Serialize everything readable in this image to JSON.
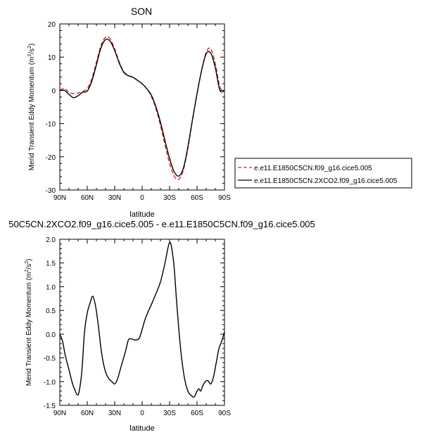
{
  "chart_data": [
    {
      "type": "line",
      "title": "SON",
      "xlabel": "latitude",
      "ylabel": "Merid Transient Eddy Momentum (m²/s²)",
      "ylabel_base": "Merid Transient Eddy Momentum (m",
      "ylabel_sup": "2",
      "ylabel_mid": "/s",
      "ylabel_end": ")",
      "xlim": [
        90,
        -90
      ],
      "ylim": [
        -30,
        20
      ],
      "x_ticks": [
        90,
        60,
        30,
        0,
        -30,
        -60,
        -90
      ],
      "x_tick_labels": [
        "90N",
        "60N",
        "30N",
        "0",
        "30S",
        "60S",
        "90S"
      ],
      "y_ticks": [
        -30,
        -20,
        -10,
        0,
        10,
        20
      ],
      "y_tick_labels": [
        "-30",
        "-20",
        "-10",
        "0",
        "10",
        "20"
      ],
      "legend": "right",
      "series": [
        {
          "name": "e.e11.E1850C5CN.f09_g16.cice5.005",
          "color": "#d62728",
          "dash": true,
          "x": [
            90,
            85,
            80,
            75,
            70,
            65,
            60,
            55,
            50,
            45,
            40,
            35,
            30,
            25,
            20,
            15,
            10,
            5,
            0,
            -5,
            -10,
            -15,
            -20,
            -25,
            -30,
            -35,
            -40,
            -45,
            -50,
            -55,
            -60,
            -65,
            -70,
            -75,
            -80,
            -85,
            -90
          ],
          "y": [
            0.0,
            0.6,
            -0.6,
            -1.0,
            -0.8,
            -0.3,
            0.5,
            3.5,
            8.5,
            13.5,
            16.0,
            15.5,
            12.5,
            8.5,
            5.6,
            4.5,
            4.0,
            3.0,
            2.0,
            0.5,
            -1.8,
            -5.5,
            -10.5,
            -16.5,
            -22.0,
            -25.8,
            -26.8,
            -24.0,
            -17.5,
            -9.0,
            -1.0,
            6.0,
            11.5,
            12.5,
            8.0,
            1.0,
            0.0
          ]
        },
        {
          "name": "e.e11.E1850C5CN.2XCO2.f09_g16.cice5.005",
          "color": "#000000",
          "dash": false,
          "x": [
            90,
            85,
            80,
            75,
            70,
            65,
            60,
            55,
            50,
            45,
            40,
            35,
            30,
            25,
            20,
            15,
            10,
            5,
            0,
            -5,
            -10,
            -15,
            -20,
            -25,
            -30,
            -35,
            -40,
            -45,
            -50,
            -55,
            -60,
            -65,
            -70,
            -75,
            -80,
            -85,
            -90
          ],
          "y": [
            0.0,
            0.0,
            -1.2,
            -2.2,
            -1.6,
            -0.6,
            -0.2,
            2.8,
            7.7,
            12.8,
            15.3,
            14.8,
            12.0,
            8.2,
            5.4,
            4.4,
            3.9,
            3.0,
            2.0,
            0.5,
            -1.4,
            -4.9,
            -9.6,
            -15.2,
            -20.5,
            -24.5,
            -25.8,
            -23.5,
            -17.0,
            -8.8,
            -1.0,
            6.0,
            11.0,
            11.2,
            6.8,
            0.0,
            0.0
          ]
        }
      ]
    },
    {
      "type": "line",
      "title": "50C5CN.2XCO2.f09_g16.cice5.005 - e.e11.E1850C5CN.f09_g16.cice5.005",
      "xlabel": "latitude",
      "ylabel": "Merid Transient Eddy Momentum (m²/s²)",
      "ylabel_base": "Merid Transient Eddy Momentum (m",
      "ylabel_sup": "2",
      "ylabel_mid": "/s",
      "ylabel_end": ")",
      "xlim": [
        90,
        -90
      ],
      "ylim": [
        -1.5,
        2.0
      ],
      "x_ticks": [
        90,
        60,
        30,
        0,
        -30,
        -60,
        -90
      ],
      "x_tick_labels": [
        "90N",
        "60N",
        "30N",
        "0",
        "30S",
        "60S",
        "90S"
      ],
      "y_ticks": [
        -1.5,
        -1.0,
        -0.5,
        0.0,
        0.5,
        1.0,
        1.5,
        2.0
      ],
      "y_tick_labels": [
        "-1.5",
        "-1.0",
        "-0.5",
        "0.0",
        "0.5",
        "1.0",
        "1.5",
        "2.0"
      ],
      "series": [
        {
          "color": "#000000",
          "x": [
            90,
            87,
            84,
            80,
            76,
            73,
            71,
            69,
            66,
            63,
            60,
            57,
            54,
            51,
            48,
            45,
            42,
            39,
            36,
            33,
            30,
            27,
            24,
            21,
            18,
            15,
            12,
            9,
            6,
            3,
            0,
            -3,
            -6,
            -10,
            -15,
            -20,
            -25,
            -28,
            -30,
            -32,
            -35,
            -38,
            -42,
            -46,
            -50,
            -54,
            -57,
            -60,
            -62,
            -64,
            -66,
            -69,
            -72,
            -75,
            -78,
            -81,
            -84,
            -87,
            -90
          ],
          "y": [
            0.0,
            -0.15,
            -0.45,
            -0.75,
            -1.05,
            -1.2,
            -1.28,
            -1.22,
            -0.8,
            0.05,
            0.45,
            0.65,
            0.8,
            0.6,
            0.2,
            -0.3,
            -0.65,
            -0.85,
            -0.95,
            -1.0,
            -1.05,
            -0.95,
            -0.75,
            -0.55,
            -0.35,
            -0.12,
            -0.1,
            -0.12,
            -0.12,
            -0.08,
            0.1,
            0.3,
            0.45,
            0.62,
            0.85,
            1.1,
            1.5,
            1.8,
            1.93,
            1.85,
            1.4,
            0.6,
            -0.3,
            -0.9,
            -1.2,
            -1.3,
            -1.32,
            -1.2,
            -1.15,
            -1.2,
            -1.1,
            -1.0,
            -0.98,
            -1.05,
            -0.9,
            -0.6,
            -0.3,
            -0.15,
            0.05
          ]
        }
      ]
    }
  ]
}
